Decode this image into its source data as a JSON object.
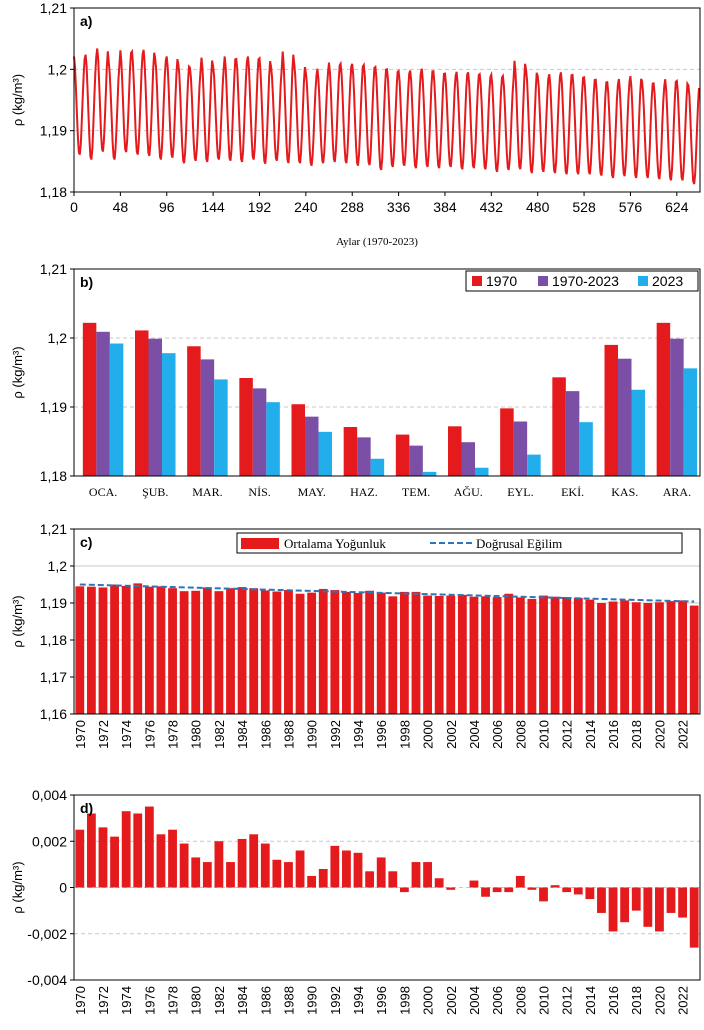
{
  "chart_data": [
    {
      "panel": "a)",
      "type": "line",
      "xlabel": "Aylar (1970-2023)",
      "ylabel": "ρ (kg/m³)",
      "xlim": [
        0,
        648
      ],
      "ylim": [
        1.18,
        1.21
      ],
      "x_ticks": [
        "0",
        "48",
        "96",
        "144",
        "192",
        "240",
        "288",
        "336",
        "384",
        "432",
        "480",
        "528",
        "576",
        "624"
      ],
      "y_ticks": [
        "1,18",
        "1,19",
        "1,2",
        "1,21"
      ],
      "series": [
        {
          "color": "#e41a1c",
          "description_months": 648,
          "monthly_climatology_start": 1.2012,
          "jan_peaks": [
            1.2022,
            1.2025,
            1.2035,
            1.2012,
            1.2032,
            1.203,
            1.2033,
            1.202,
            1.2022,
            1.201,
            1.2004,
            1.202,
            1.2006,
            1.2022,
            1.2018,
            1.2022,
            1.2019,
            1.2005,
            1.203,
            1.2009,
            1.1995,
            1.2002,
            1.2012,
            1.201,
            1.201,
            1.2008,
            1.2005,
            1.2001,
            1.1998,
            1.1999,
            1.2002,
            1.1998,
            1.1994,
            1.1997,
            1.1996,
            1.1993,
            1.1992,
            1.199,
            1.2015,
            1.2,
            1.199,
            1.1993,
            1.1996,
            1.1992,
            1.1988,
            1.1984,
            1.198,
            1.1985,
            1.199,
            1.1982,
            1.1978,
            1.1985,
            1.1982,
            1.1975
          ],
          "jul_troughs": [
            1.186,
            1.1852,
            1.1865,
            1.1852,
            1.1864,
            1.186,
            1.1858,
            1.1852,
            1.1855,
            1.1846,
            1.185,
            1.1848,
            1.1852,
            1.185,
            1.1848,
            1.1852,
            1.1845,
            1.185,
            1.1846,
            1.1846,
            1.1842,
            1.1846,
            1.1848,
            1.1846,
            1.1842,
            1.1843,
            1.1835,
            1.184,
            1.1842,
            1.1838,
            1.184,
            1.1838,
            1.184,
            1.1836,
            1.1838,
            1.1836,
            1.1832,
            1.1835,
            1.1836,
            1.183,
            1.1832,
            1.183,
            1.1828,
            1.1828,
            1.1828,
            1.1826,
            1.1822,
            1.1825,
            1.1822,
            1.1822,
            1.182,
            1.1818,
            1.1818,
            1.1812
          ]
        }
      ]
    },
    {
      "panel": "b)",
      "type": "bar",
      "ylabel": "ρ (kg/m³)",
      "ylim": [
        1.18,
        1.21
      ],
      "y_ticks": [
        "1,18",
        "1,19",
        "1,2",
        "1,21"
      ],
      "categories": [
        "OCA.",
        "ŞUB.",
        "MAR.",
        "NİS.",
        "MAY.",
        "HAZ.",
        "TEM.",
        "AĞU.",
        "EYL.",
        "EKİ.",
        "KAS.",
        "ARA."
      ],
      "legend_position": "top-right",
      "series": [
        {
          "name": "1970",
          "color": "#e41a1c",
          "values": [
            1.2022,
            1.2011,
            1.1988,
            1.1942,
            1.1904,
            1.1871,
            1.186,
            1.1872,
            1.1898,
            1.1943,
            1.199,
            1.2022
          ]
        },
        {
          "name": "1970-2023",
          "color": "#7b4fa6",
          "values": [
            1.2009,
            1.1999,
            1.1969,
            1.1927,
            1.1886,
            1.1856,
            1.1844,
            1.1849,
            1.1879,
            1.1923,
            1.197,
            1.1999
          ]
        },
        {
          "name": "2023",
          "color": "#22aeea",
          "values": [
            1.1992,
            1.1978,
            1.194,
            1.1907,
            1.1864,
            1.1825,
            1.1806,
            1.1812,
            1.1831,
            1.1878,
            1.1925,
            1.1956
          ]
        }
      ]
    },
    {
      "panel": "c)",
      "type": "bar",
      "ylabel": "ρ (kg/m³)",
      "ylim": [
        1.16,
        1.21
      ],
      "y_ticks": [
        "1,16",
        "1,17",
        "1,18",
        "1,19",
        "1,2",
        "1,21"
      ],
      "x_tick_labels": [
        "1970",
        "1972",
        "1974",
        "1976",
        "1978",
        "1980",
        "1982",
        "1984",
        "1986",
        "1988",
        "1990",
        "1992",
        "1994",
        "1996",
        "1998",
        "2000",
        "2002",
        "2004",
        "2006",
        "2008",
        "2010",
        "2012",
        "2014",
        "2016",
        "2018",
        "2020",
        "2022"
      ],
      "legend": {
        "bars": "Ortalama Yoğunluk",
        "trend": "Doğrusal Eğilim"
      },
      "bar_color": "#e41a1c",
      "trend_color": "#2e75b6",
      "years_start": 1970,
      "values": [
        1.1945,
        1.1944,
        1.1942,
        1.195,
        1.1946,
        1.1953,
        1.1944,
        1.1945,
        1.194,
        1.1932,
        1.1933,
        1.1942,
        1.1932,
        1.194,
        1.1943,
        1.194,
        1.1934,
        1.1931,
        1.1935,
        1.1925,
        1.1928,
        1.1938,
        1.1935,
        1.193,
        1.1927,
        1.1933,
        1.1928,
        1.1918,
        1.193,
        1.193,
        1.192,
        1.1919,
        1.192,
        1.1922,
        1.1917,
        1.1918,
        1.1916,
        1.1925,
        1.1915,
        1.1911,
        1.192,
        1.1917,
        1.1916,
        1.1914,
        1.1909,
        1.19,
        1.1904,
        1.1907,
        1.1902,
        1.19,
        1.1902,
        1.1905,
        1.1907,
        1.1893
      ],
      "trend": [
        1.195,
        1.1904
      ]
    },
    {
      "panel": "d)",
      "type": "bar",
      "ylabel": "ρ (kg/m³)",
      "ylim": [
        -0.004,
        0.004
      ],
      "y_ticks": [
        "-0,004",
        "-0,002",
        "0",
        "0,002",
        "0,004"
      ],
      "x_tick_labels": [
        "1970",
        "1972",
        "1974",
        "1976",
        "1978",
        "1980",
        "1982",
        "1984",
        "1986",
        "1988",
        "1990",
        "1992",
        "1994",
        "1996",
        "1998",
        "2000",
        "2002",
        "2004",
        "2006",
        "2008",
        "2010",
        "2012",
        "2014",
        "2016",
        "2018",
        "2020",
        "2022"
      ],
      "bar_color": "#e41a1c",
      "years_start": 1970,
      "values": [
        0.0025,
        0.0032,
        0.0026,
        0.0022,
        0.0033,
        0.0032,
        0.0035,
        0.0023,
        0.0025,
        0.0019,
        0.0013,
        0.0011,
        0.002,
        0.0011,
        0.0021,
        0.0023,
        0.0019,
        0.0012,
        0.0011,
        0.0016,
        0.0005,
        0.0008,
        0.0018,
        0.0016,
        0.0015,
        0.0007,
        0.0013,
        0.0007,
        -0.0002,
        0.0011,
        0.0011,
        0.0004,
        -0.0001,
        0.0,
        0.0003,
        -0.0004,
        -0.0002,
        -0.0002,
        0.0005,
        -0.0001,
        -0.0006,
        0.0001,
        -0.0002,
        -0.0003,
        -0.0005,
        -0.0011,
        -0.0019,
        -0.0015,
        -0.001,
        -0.0017,
        -0.0019,
        -0.0011,
        -0.0013,
        -0.0026
      ]
    }
  ]
}
